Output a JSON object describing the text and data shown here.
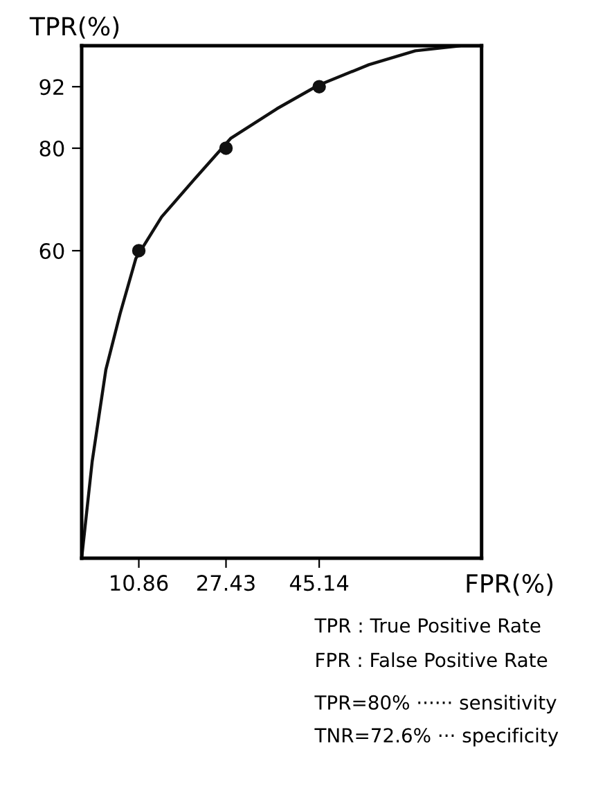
{
  "chart_data": {
    "type": "line",
    "xlabel": "FPR(%)",
    "ylabel": "TPR(%)",
    "series": [
      {
        "color": "#111111",
        "x": [
          0,
          2.0,
          4.6,
          7.3,
          10.3,
          15.2,
          21.3,
          28.3,
          37.1,
          45.0,
          54.6,
          63.4,
          72.1,
          76
        ],
        "values": [
          0,
          18.9,
          36.8,
          47.7,
          58.5,
          66.6,
          73.8,
          81.9,
          87.7,
          92.3,
          96.3,
          99.0,
          100,
          100
        ]
      },
      {
        "type": "scatter",
        "color": "#111111",
        "x": [
          10.86,
          27.43,
          45.14
        ],
        "values": [
          60,
          80,
          92
        ]
      }
    ],
    "xlim": [
      0,
      76
    ],
    "ylim": [
      0,
      100
    ],
    "xticks": [
      10.86,
      27.43,
      45.14
    ],
    "yticks": [
      60,
      80,
      92
    ],
    "grid": false,
    "legend": false,
    "annotations": [
      "TPR : True Positive Rate",
      "FPR : False Positive Rate",
      "TPR=80% ······ sensitivity",
      "TNR=72.6% ··· specificity"
    ]
  }
}
